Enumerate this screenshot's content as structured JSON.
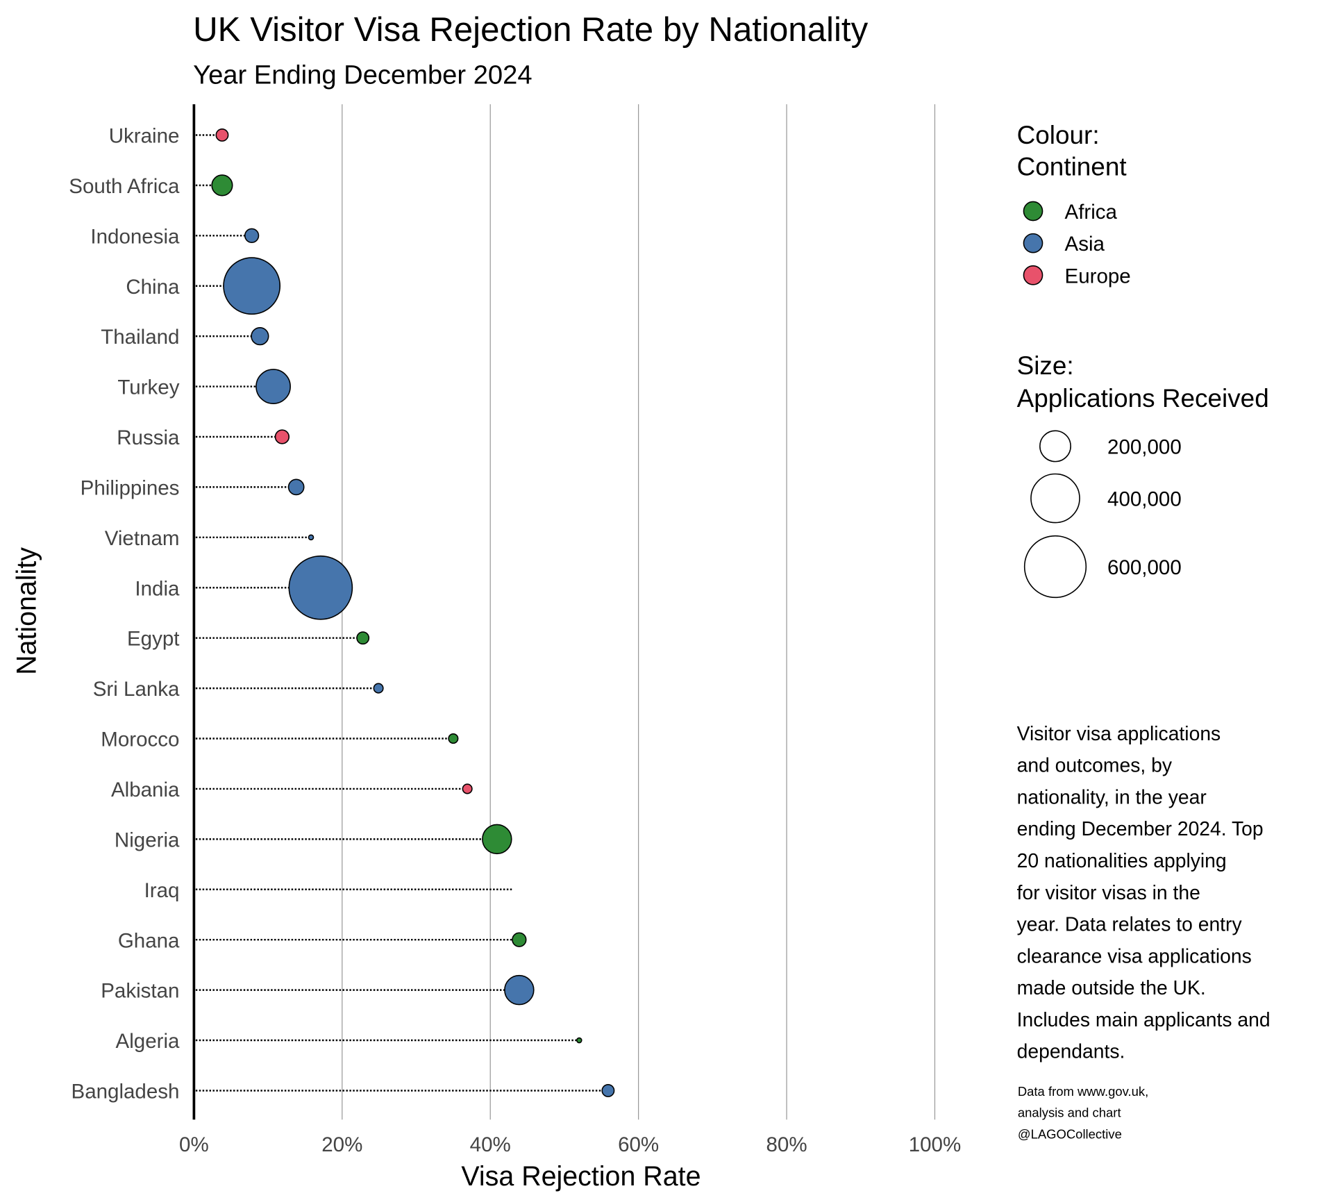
{
  "chart_data": {
    "type": "scatter",
    "subtype": "lollipop-bubble",
    "title": "UK Visitor Visa Rejection Rate by Nationality",
    "subtitle": "Year Ending December 2024",
    "xlabel": "Visa Rejection Rate",
    "ylabel": "Nationality",
    "xlim": [
      0,
      100
    ],
    "x_ticks": [
      "0%",
      "20%",
      "40%",
      "60%",
      "80%",
      "100%"
    ],
    "grid": "vertical major",
    "categories": [
      "Ukraine",
      "South Africa",
      "Indonesia",
      "China",
      "Thailand",
      "Turkey",
      "Russia",
      "Philippines",
      "Vietnam",
      "India",
      "Egypt",
      "Sri Lanka",
      "Morocco",
      "Albania",
      "Nigeria",
      "Iraq",
      "Ghana",
      "Pakistan",
      "Algeria",
      "Bangladesh"
    ],
    "rejection_rate_pct": [
      3.8,
      3.8,
      7.8,
      7.8,
      8.9,
      10.7,
      11.9,
      13.8,
      15.8,
      17.1,
      22.8,
      24.9,
      35.0,
      36.9,
      40.9,
      43.0,
      43.9,
      43.9,
      52.0,
      55.9
    ],
    "applications": [
      87000,
      126000,
      93000,
      515000,
      108000,
      231000,
      93000,
      100000,
      70000,
      630000,
      87000,
      79000,
      79000,
      79000,
      186000,
      60000,
      93000,
      186000,
      70000,
      87000
    ],
    "continent": [
      "Europe",
      "Africa",
      "Asia",
      "Asia",
      "Asia",
      "Asia",
      "Europe",
      "Asia",
      "Asia",
      "Asia",
      "Africa",
      "Asia",
      "Africa",
      "Europe",
      "Africa",
      "Asia",
      "Africa",
      "Asia",
      "Africa",
      "Asia"
    ],
    "legend": {
      "colour_title": [
        "Colour:",
        "Continent"
      ],
      "colour_items": [
        {
          "label": "Africa",
          "color": "#2E8B35"
        },
        {
          "label": "Asia",
          "color": "#4675AC"
        },
        {
          "label": "Europe",
          "color": "#E8526B"
        }
      ],
      "size_title": [
        "Size:",
        "Applications Received"
      ],
      "size_items": [
        {
          "label": "200,000",
          "value": 200000
        },
        {
          "label": "400,000",
          "value": 400000
        },
        {
          "label": "600,000",
          "value": 600000
        }
      ],
      "placement": "right"
    },
    "note": [
      "Visitor visa applications",
      "and outcomes, by",
      "nationality, in the year",
      "ending December 2024. Top",
      "20 nationalities applying",
      "for visitor visas in the",
      "year. Data relates to entry",
      "clearance visa applications",
      "made outside the UK.",
      "Includes main applicants and",
      "dependants."
    ],
    "source": [
      "Data from www.gov.uk,",
      "analysis and chart",
      "@LAGOCollective"
    ]
  }
}
